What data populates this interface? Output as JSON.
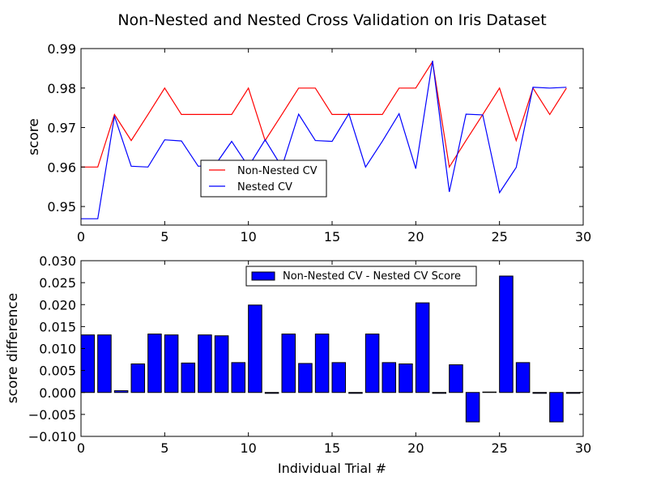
{
  "figure_title": "Non-Nested and Nested Cross Validation on Iris Dataset",
  "chart_data": [
    {
      "type": "line",
      "ylabel": "score",
      "xlabel": "",
      "xlim": [
        0,
        30
      ],
      "ylim": [
        0.9453,
        0.99
      ],
      "xticks": [
        0,
        5,
        10,
        15,
        20,
        25,
        30
      ],
      "xtick_labels": [
        "0",
        "5",
        "10",
        "15",
        "20",
        "25",
        "30"
      ],
      "yticks": [
        0.95,
        0.96,
        0.97,
        0.98,
        0.99
      ],
      "ytick_labels": [
        "0.95",
        "0.96",
        "0.97",
        "0.98",
        "0.99"
      ],
      "grid": false,
      "legend_position": "center",
      "x": [
        0,
        1,
        2,
        3,
        4,
        5,
        6,
        7,
        8,
        9,
        10,
        11,
        12,
        13,
        14,
        15,
        16,
        17,
        18,
        19,
        20,
        21,
        22,
        23,
        24,
        25,
        26,
        27,
        28,
        29
      ],
      "series": [
        {
          "name": "Non-Nested CV",
          "color": "#ff0000",
          "values": [
            0.96,
            0.96,
            0.9733,
            0.9667,
            0.9733,
            0.98,
            0.9733,
            0.9733,
            0.9733,
            0.9733,
            0.98,
            0.9667,
            0.9733,
            0.98,
            0.98,
            0.9733,
            0.9733,
            0.9733,
            0.9733,
            0.98,
            0.98,
            0.9867,
            0.96,
            0.9667,
            0.9733,
            0.98,
            0.9667,
            0.98,
            0.9733,
            0.98
          ]
        },
        {
          "name": "Nested CV",
          "color": "#0000ff",
          "values": [
            0.9469,
            0.9469,
            0.9729,
            0.9602,
            0.96,
            0.9669,
            0.9666,
            0.9602,
            0.9604,
            0.9665,
            0.9601,
            0.9669,
            0.96,
            0.9734,
            0.9667,
            0.9665,
            0.9735,
            0.96,
            0.9665,
            0.9735,
            0.9596,
            0.9869,
            0.9537,
            0.9734,
            0.9732,
            0.9535,
            0.9599,
            0.9802,
            0.98,
            0.9802
          ]
        }
      ]
    },
    {
      "type": "bar",
      "xlabel": "Individual Trial #",
      "ylabel": "score difference",
      "xlim": [
        0,
        30
      ],
      "ylim": [
        -0.01,
        0.03
      ],
      "xticks": [
        0,
        5,
        10,
        15,
        20,
        25,
        30
      ],
      "xtick_labels": [
        "0",
        "5",
        "10",
        "15",
        "20",
        "25",
        "30"
      ],
      "yticks": [
        -0.01,
        -0.005,
        0.0,
        0.005,
        0.01,
        0.015,
        0.02,
        0.025,
        0.03
      ],
      "ytick_labels": [
        "−0.010",
        "−0.005",
        "0.000",
        "0.005",
        "0.010",
        "0.015",
        "0.020",
        "0.025",
        "0.030"
      ],
      "grid": false,
      "legend_position": "upper-center",
      "x": [
        0,
        1,
        2,
        3,
        4,
        5,
        6,
        7,
        8,
        9,
        10,
        11,
        12,
        13,
        14,
        15,
        16,
        17,
        18,
        19,
        20,
        21,
        22,
        23,
        24,
        25,
        26,
        27,
        28,
        29
      ],
      "series": [
        {
          "name": "Non-Nested CV - Nested CV Score",
          "color": "#0000ff",
          "values": [
            0.0131,
            0.0131,
            0.0004,
            0.0065,
            0.0133,
            0.0131,
            0.0067,
            0.0131,
            0.0129,
            0.0068,
            0.0199,
            -0.0002,
            0.0133,
            0.0066,
            0.0133,
            0.0068,
            -0.0002,
            0.0133,
            0.0068,
            0.0065,
            0.0204,
            -0.0002,
            0.0063,
            -0.0067,
            0.0001,
            0.0265,
            0.0068,
            -0.0002,
            -0.0067,
            -0.0002
          ]
        }
      ]
    }
  ]
}
